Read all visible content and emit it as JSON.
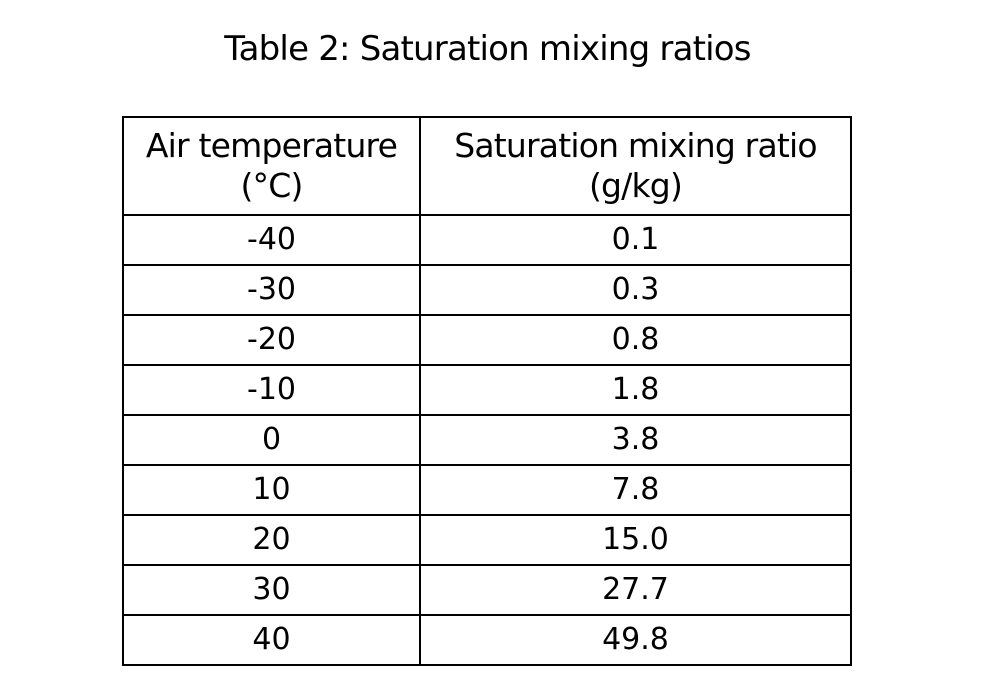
{
  "title": "Table 2:  Saturation mixing ratios",
  "table": {
    "headers": [
      {
        "line1": "Air temperature",
        "line2": "(°C)"
      },
      {
        "line1": "Saturation mixing ratio",
        "line2": "(g/kg)"
      }
    ],
    "rows": [
      [
        "-40",
        "0.1"
      ],
      [
        "-30",
        "0.3"
      ],
      [
        "-20",
        "0.8"
      ],
      [
        "-10",
        "1.8"
      ],
      [
        "0",
        "3.8"
      ],
      [
        "10",
        "7.8"
      ],
      [
        "20",
        "15.0"
      ],
      [
        "30",
        "27.7"
      ],
      [
        "40",
        "49.8"
      ]
    ]
  }
}
